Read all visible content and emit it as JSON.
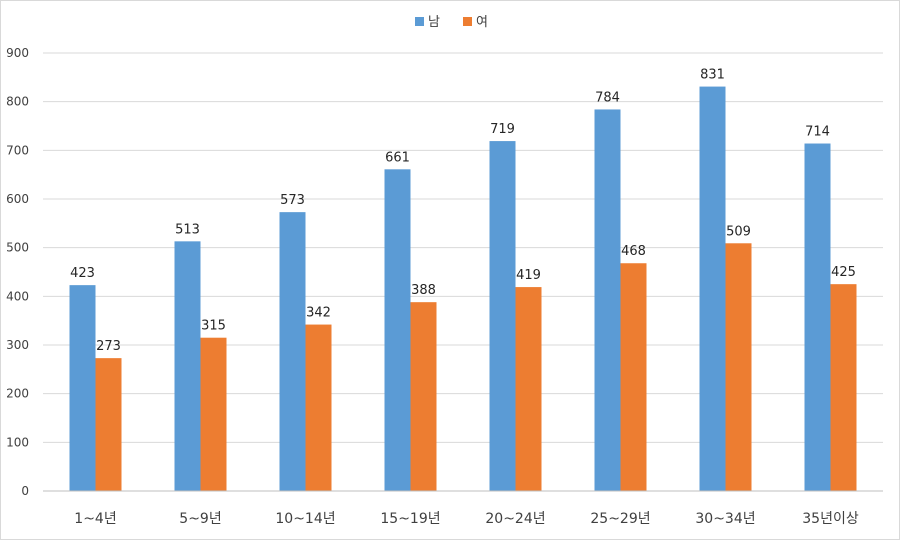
{
  "chart_data": {
    "type": "bar",
    "title": "",
    "xlabel": "",
    "ylabel": "",
    "categories": [
      "1~4년",
      "5~9년",
      "10~14년",
      "15~19년",
      "20~24년",
      "25~29년",
      "30~34년",
      "35년이상"
    ],
    "series": [
      {
        "name": "남",
        "color": "#5B9BD5",
        "values": [
          423,
          513,
          573,
          661,
          719,
          784,
          831,
          714
        ]
      },
      {
        "name": "여",
        "color": "#ED7D31",
        "values": [
          273,
          315,
          342,
          388,
          419,
          468,
          509,
          425
        ]
      }
    ],
    "ylim": [
      0,
      900
    ],
    "yticks": [
      0,
      100,
      200,
      300,
      400,
      500,
      600,
      700,
      800,
      900
    ],
    "grid": true,
    "legend_position": "top-center",
    "data_labels": true
  }
}
